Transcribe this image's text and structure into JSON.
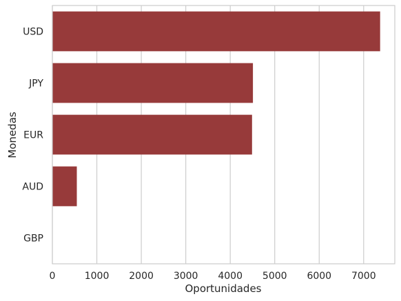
{
  "chart_data": {
    "type": "bar",
    "orientation": "horizontal",
    "categories": [
      "USD",
      "JPY",
      "EUR",
      "AUD",
      "GBP"
    ],
    "values": [
      7370,
      4510,
      4490,
      550,
      0
    ],
    "xlabel": "Oportunidades",
    "ylabel": "Monedas",
    "xlim": [
      0,
      7700
    ],
    "xticks": [
      0,
      1000,
      2000,
      3000,
      4000,
      5000,
      6000,
      7000
    ],
    "grid": "vertical",
    "colors": {
      "bar": "#973A3A",
      "grid": "#CCCCCC",
      "frame": "#CCCCCC",
      "text": "#262626"
    }
  }
}
